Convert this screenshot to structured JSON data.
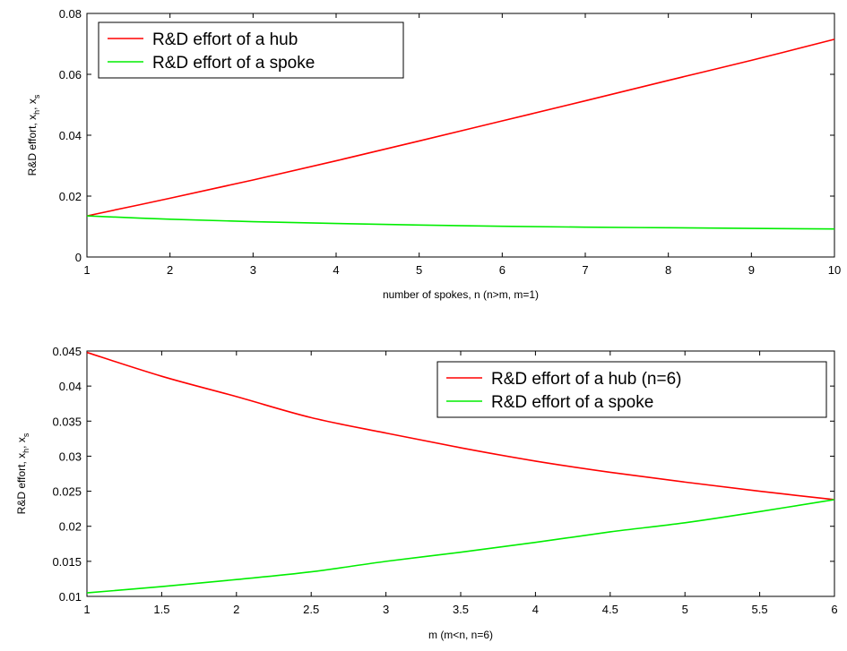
{
  "chart_data": [
    {
      "type": "line",
      "title": "",
      "xlabel": "number of spokes, n (n>m, m=1)",
      "ylabel": "R&D effort, x",
      "ylabel_sub1": "h",
      "ylabel_sep": ", x",
      "ylabel_sub2": "s",
      "xlim": [
        1,
        10
      ],
      "ylim": [
        0,
        0.08
      ],
      "xticks": [
        1,
        2,
        3,
        4,
        5,
        6,
        7,
        8,
        9,
        10
      ],
      "xtick_labels": [
        "1",
        "2",
        "3",
        "4",
        "5",
        "6",
        "7",
        "8",
        "9",
        "10"
      ],
      "yticks": [
        0,
        0.02,
        0.04,
        0.06,
        0.08
      ],
      "ytick_labels": [
        "0",
        "0.02",
        "0.04",
        "0.06",
        "0.08"
      ],
      "grid": false,
      "legend_position": "top-left",
      "x": [
        1,
        2,
        3,
        4,
        5,
        6,
        7,
        8,
        9,
        10
      ],
      "series": [
        {
          "name": "R&D effort of a hub",
          "color": "#ff0000",
          "values": [
            0.0135,
            0.0193,
            0.0253,
            0.0316,
            0.0381,
            0.0447,
            0.0513,
            0.058,
            0.0646,
            0.0715
          ]
        },
        {
          "name": "R&D effort of a spoke",
          "color": "#00ee00",
          "values": [
            0.0135,
            0.0124,
            0.0116,
            0.011,
            0.0105,
            0.0101,
            0.0098,
            0.0096,
            0.0094,
            0.0092
          ]
        }
      ]
    },
    {
      "type": "line",
      "title": "",
      "xlabel": "m (m<n, n=6)",
      "ylabel": "R&D effort, x",
      "ylabel_sub1": "h",
      "ylabel_sep": ", x",
      "ylabel_sub2": "s",
      "xlim": [
        1,
        6
      ],
      "ylim": [
        0.01,
        0.045
      ],
      "xticks": [
        1,
        1.5,
        2,
        2.5,
        3,
        3.5,
        4,
        4.5,
        5,
        5.5,
        6
      ],
      "xtick_labels": [
        "1",
        "1.5",
        "2",
        "2.5",
        "3",
        "3.5",
        "4",
        "4.5",
        "5",
        "5.5",
        "6"
      ],
      "yticks": [
        0.01,
        0.015,
        0.02,
        0.025,
        0.03,
        0.035,
        0.04,
        0.045
      ],
      "ytick_labels": [
        "0.01",
        "0.015",
        "0.02",
        "0.025",
        "0.03",
        "0.035",
        "0.04",
        "0.045"
      ],
      "grid": false,
      "legend_position": "top-right",
      "x": [
        1,
        1.5,
        2,
        2.5,
        3,
        3.5,
        4,
        4.5,
        5,
        5.5,
        6
      ],
      "series": [
        {
          "name": "R&D effort of a hub (n=6)",
          "color": "#ff0000",
          "values": [
            0.0448,
            0.0414,
            0.0385,
            0.0355,
            0.0333,
            0.0312,
            0.0293,
            0.0277,
            0.0263,
            0.025,
            0.0238
          ]
        },
        {
          "name": "R&D effort of a spoke",
          "color": "#00ee00",
          "values": [
            0.0105,
            0.0114,
            0.0124,
            0.0135,
            0.015,
            0.0163,
            0.0177,
            0.0192,
            0.0205,
            0.0221,
            0.0238
          ]
        }
      ]
    }
  ]
}
